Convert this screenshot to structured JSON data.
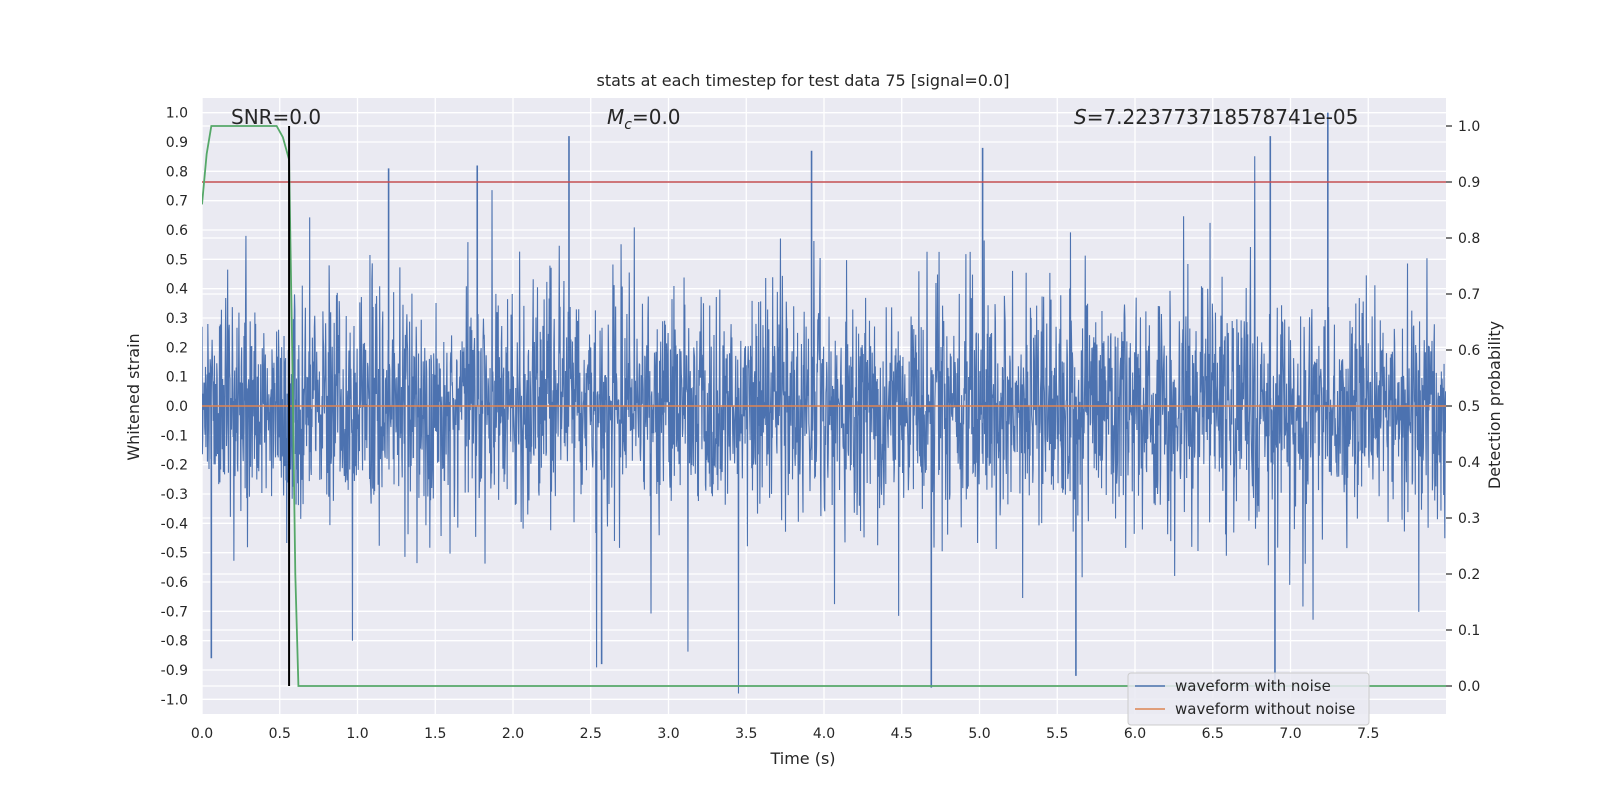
{
  "chart_data": {
    "type": "line",
    "title": "stats at each timestep for test data 75 [signal=0.0]",
    "xlabel": "Time (s)",
    "ylabel": "Whitened strain",
    "y2label": "Detection probability",
    "xlim": [
      0.0,
      8.0
    ],
    "ylim": [
      -1.05,
      1.05
    ],
    "y2lim": [
      -0.05,
      1.05
    ],
    "x_ticks": [
      "0.0",
      "0.5",
      "1.0",
      "1.5",
      "2.0",
      "2.5",
      "3.0",
      "3.5",
      "4.0",
      "4.5",
      "5.0",
      "5.5",
      "6.0",
      "6.5",
      "7.0",
      "7.5"
    ],
    "y_ticks": [
      "-1.0",
      "-0.9",
      "-0.8",
      "-0.7",
      "-0.6",
      "-0.5",
      "-0.4",
      "-0.3",
      "-0.2",
      "-0.1",
      "0.0",
      "0.1",
      "0.2",
      "0.3",
      "0.4",
      "0.5",
      "0.6",
      "0.7",
      "0.8",
      "0.9",
      "1.0"
    ],
    "y2_ticks": [
      "0.0",
      "0.1",
      "0.2",
      "0.3",
      "0.4",
      "0.5",
      "0.6",
      "0.7",
      "0.8",
      "0.9",
      "1.0"
    ],
    "grid": true,
    "legend_position": "bottom-right",
    "annotations": {
      "snr_label": "SNR=0.0",
      "mc_symbol": "M",
      "mc_subscript": "c",
      "mc_value": "=0.0",
      "s_symbol": "S",
      "s_value": "=7.223773718578741e-05"
    },
    "series": [
      {
        "name": "waveform with noise",
        "color": "#4c72b0",
        "axis": "left",
        "note": "dense whitened noise, amplitude mostly within ±0.4 with spikes up to ±1.0",
        "peaks": [
          {
            "x": 0.06,
            "y": -0.86
          },
          {
            "x": 1.2,
            "y": 0.81
          },
          {
            "x": 1.77,
            "y": 0.82
          },
          {
            "x": 2.36,
            "y": 0.92
          },
          {
            "x": 2.57,
            "y": -0.88
          },
          {
            "x": 3.92,
            "y": 0.87
          },
          {
            "x": 4.69,
            "y": -0.96
          },
          {
            "x": 5.02,
            "y": 0.88
          },
          {
            "x": 5.62,
            "y": -0.92
          },
          {
            "x": 6.87,
            "y": 0.92
          },
          {
            "x": 6.9,
            "y": -0.96
          },
          {
            "x": 7.24,
            "y": 1.0
          }
        ]
      },
      {
        "name": "waveform without noise",
        "color": "#dd8452",
        "axis": "left",
        "x": [
          0.0,
          8.0
        ],
        "y": [
          0.0,
          0.0
        ]
      },
      {
        "name": "detection probability",
        "color": "#55a868",
        "axis": "right",
        "x": [
          0.0,
          0.03,
          0.06,
          0.1,
          0.2,
          0.3,
          0.4,
          0.48,
          0.52,
          0.56,
          0.58,
          0.6,
          0.62,
          0.64,
          8.0
        ],
        "y": [
          0.86,
          0.95,
          1.0,
          1.0,
          1.0,
          1.0,
          1.0,
          1.0,
          0.98,
          0.94,
          0.6,
          0.2,
          0.0,
          0.0,
          0.0
        ]
      }
    ],
    "threshold_line": {
      "color": "#c44e52",
      "y2": 0.9
    },
    "vertical_marker": {
      "color": "#000000",
      "x": 0.56,
      "y2_range": [
        0.0,
        1.0
      ]
    }
  }
}
